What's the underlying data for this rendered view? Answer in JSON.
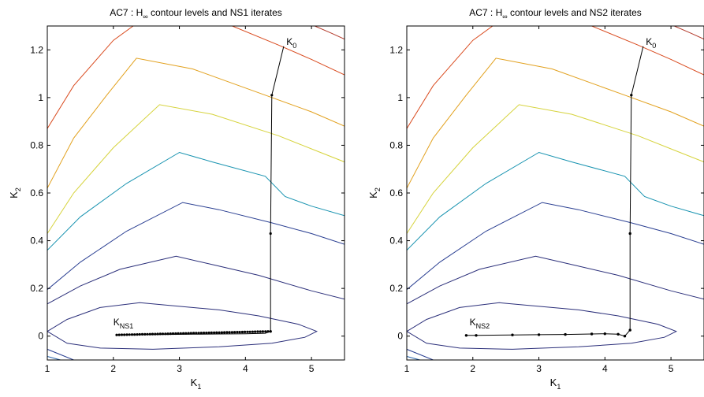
{
  "figure": {
    "colors": {
      "c1": "#2b2f7a",
      "c2": "#2a3f92",
      "c3": "#1f5da8",
      "c4": "#1893b0",
      "c5": "#39c7d6",
      "c6": "#d6d33c",
      "c7": "#e2a11e",
      "c8": "#d94a1e",
      "c9": "#b33a2b",
      "iterates": "#000000"
    }
  },
  "chart_data": [
    {
      "type": "line",
      "title_prefix": "AC7 : H",
      "title_sub": "∞",
      "title_suffix": " contour levels and NS1 iterates",
      "xlabel_main": "K",
      "xlabel_sub": "1",
      "ylabel_main": "K",
      "ylabel_sub": "2",
      "xlim": [
        1,
        5.5
      ],
      "ylim": [
        -0.1,
        1.3
      ],
      "xticks": [
        1,
        2,
        3,
        4,
        5
      ],
      "yticks": [
        0,
        0.2,
        0.4,
        0.6,
        0.8,
        1,
        1.2
      ],
      "yticklabels": [
        "0",
        "0.2",
        "0.4",
        "0.6",
        "0.8",
        "1",
        "1.2"
      ],
      "contours": [
        {
          "level": 1,
          "color": "c1",
          "closed": true,
          "points": [
            [
              1,
              0.02
            ],
            [
              1.3,
              0.07
            ],
            [
              1.8,
              0.12
            ],
            [
              2.4,
              0.14
            ],
            [
              3.0,
              0.125
            ],
            [
              3.6,
              0.11
            ],
            [
              4.2,
              0.085
            ],
            [
              4.8,
              0.05
            ],
            [
              5.08,
              0.02
            ],
            [
              4.9,
              -0.005
            ],
            [
              4.4,
              -0.03
            ],
            [
              3.6,
              -0.045
            ],
            [
              2.6,
              -0.055
            ],
            [
              1.8,
              -0.05
            ],
            [
              1.3,
              -0.03
            ],
            [
              1,
              0.02
            ]
          ]
        },
        {
          "level": 2,
          "color": "c1",
          "closed": false,
          "points": [
            [
              1,
              0.135
            ],
            [
              1.5,
              0.21
            ],
            [
              2.1,
              0.28
            ],
            [
              2.95,
              0.335
            ],
            [
              3.5,
              0.3
            ],
            [
              4.2,
              0.255
            ],
            [
              5.0,
              0.19
            ],
            [
              5.5,
              0.155
            ]
          ]
        },
        {
          "level": 3,
          "color": "c2",
          "closed": false,
          "points": [
            [
              1,
              0.195
            ],
            [
              1.5,
              0.31
            ],
            [
              2.2,
              0.44
            ],
            [
              3.05,
              0.56
            ],
            [
              3.6,
              0.53
            ],
            [
              4.4,
              0.475
            ],
            [
              5.0,
              0.43
            ],
            [
              5.5,
              0.385
            ]
          ]
        },
        {
          "level": 4,
          "color": "c4",
          "closed": false,
          "points": [
            [
              1,
              0.36
            ],
            [
              1.5,
              0.5
            ],
            [
              2.2,
              0.64
            ],
            [
              3.0,
              0.77
            ],
            [
              3.5,
              0.73
            ],
            [
              4.3,
              0.67
            ],
            [
              4.6,
              0.585
            ],
            [
              5.0,
              0.545
            ],
            [
              5.5,
              0.505
            ]
          ]
        },
        {
          "level": 5,
          "color": "c6",
          "closed": false,
          "points": [
            [
              1,
              0.43
            ],
            [
              1.4,
              0.6
            ],
            [
              2.0,
              0.79
            ],
            [
              2.7,
              0.97
            ],
            [
              3.5,
              0.93
            ],
            [
              4.5,
              0.84
            ],
            [
              5.0,
              0.785
            ],
            [
              5.5,
              0.73
            ]
          ]
        },
        {
          "level": 6,
          "color": "c7",
          "closed": false,
          "points": [
            [
              1,
              0.62
            ],
            [
              1.4,
              0.83
            ],
            [
              1.9,
              1.01
            ],
            [
              2.35,
              1.165
            ],
            [
              3.2,
              1.12
            ],
            [
              4.3,
              1.01
            ],
            [
              5.0,
              0.94
            ],
            [
              5.5,
              0.88
            ]
          ]
        },
        {
          "level": 7,
          "color": "c8",
          "closed": false,
          "points": [
            [
              1,
              0.87
            ],
            [
              1.4,
              1.05
            ],
            [
              2.0,
              1.24
            ],
            [
              2.3,
              1.3
            ]
          ]
        },
        {
          "level": 8,
          "color": "c8",
          "closed": false,
          "points": [
            [
              3.8,
              1.3
            ],
            [
              4.5,
              1.22
            ],
            [
              5.0,
              1.16
            ],
            [
              5.5,
              1.095
            ]
          ]
        },
        {
          "level": 9,
          "color": "c9",
          "closed": false,
          "points": [
            [
              5.05,
              1.3
            ],
            [
              5.3,
              1.27
            ],
            [
              5.5,
              1.245
            ]
          ]
        },
        {
          "level": 10,
          "color": "c3",
          "closed": false,
          "points": [
            [
              1,
              -0.085
            ],
            [
              1.2,
              -0.1
            ]
          ]
        },
        {
          "level": 11,
          "color": "c2",
          "closed": false,
          "points": [
            [
              1,
              -0.055
            ],
            [
              1.4,
              -0.1
            ]
          ]
        }
      ],
      "iterates": [
        [
          4.58,
          1.215
        ],
        [
          4.4,
          1.01
        ],
        [
          4.38,
          0.43
        ],
        [
          4.38,
          0.02
        ],
        [
          4.3,
          0.012
        ],
        [
          4.0,
          0.01
        ],
        [
          3.6,
          0.009
        ],
        [
          3.2,
          0.008
        ],
        [
          2.8,
          0.007
        ],
        [
          2.4,
          0.006
        ],
        [
          2.05,
          0.005
        ]
      ],
      "iterates_markers": "dense",
      "annotations": [
        {
          "main": "K",
          "sub": "0",
          "x": 4.62,
          "y": 1.22
        },
        {
          "main": "K",
          "sub": "NS1",
          "x": 2.0,
          "y": 0.045
        }
      ]
    },
    {
      "type": "line",
      "title_prefix": "AC7 : H",
      "title_sub": "∞",
      "title_suffix": " contour levels and NS2 iterates",
      "xlabel_main": "K",
      "xlabel_sub": "1",
      "ylabel_main": "K",
      "ylabel_sub": "2",
      "xlim": [
        1,
        5.5
      ],
      "ylim": [
        -0.1,
        1.3
      ],
      "xticks": [
        1,
        2,
        3,
        4,
        5
      ],
      "yticks": [
        0,
        0.2,
        0.4,
        0.6,
        0.8,
        1,
        1.2
      ],
      "yticklabels": [
        "0",
        "0.2",
        "0.4",
        "0.6",
        "0.8",
        "1",
        "1.2"
      ],
      "contours": [
        {
          "level": 1,
          "color": "c1",
          "closed": true,
          "points": [
            [
              1,
              0.02
            ],
            [
              1.3,
              0.07
            ],
            [
              1.8,
              0.12
            ],
            [
              2.4,
              0.14
            ],
            [
              3.0,
              0.125
            ],
            [
              3.6,
              0.11
            ],
            [
              4.2,
              0.085
            ],
            [
              4.8,
              0.05
            ],
            [
              5.08,
              0.02
            ],
            [
              4.9,
              -0.005
            ],
            [
              4.4,
              -0.03
            ],
            [
              3.6,
              -0.045
            ],
            [
              2.6,
              -0.055
            ],
            [
              1.8,
              -0.05
            ],
            [
              1.3,
              -0.03
            ],
            [
              1,
              0.02
            ]
          ]
        },
        {
          "level": 2,
          "color": "c1",
          "closed": false,
          "points": [
            [
              1,
              0.135
            ],
            [
              1.5,
              0.21
            ],
            [
              2.1,
              0.28
            ],
            [
              2.95,
              0.335
            ],
            [
              3.5,
              0.3
            ],
            [
              4.2,
              0.255
            ],
            [
              5.0,
              0.19
            ],
            [
              5.5,
              0.155
            ]
          ]
        },
        {
          "level": 3,
          "color": "c2",
          "closed": false,
          "points": [
            [
              1,
              0.195
            ],
            [
              1.5,
              0.31
            ],
            [
              2.2,
              0.44
            ],
            [
              3.05,
              0.56
            ],
            [
              3.6,
              0.53
            ],
            [
              4.4,
              0.475
            ],
            [
              5.0,
              0.43
            ],
            [
              5.5,
              0.385
            ]
          ]
        },
        {
          "level": 4,
          "color": "c4",
          "closed": false,
          "points": [
            [
              1,
              0.36
            ],
            [
              1.5,
              0.5
            ],
            [
              2.2,
              0.64
            ],
            [
              3.0,
              0.77
            ],
            [
              3.5,
              0.73
            ],
            [
              4.3,
              0.67
            ],
            [
              4.6,
              0.585
            ],
            [
              5.0,
              0.545
            ],
            [
              5.5,
              0.505
            ]
          ]
        },
        {
          "level": 5,
          "color": "c6",
          "closed": false,
          "points": [
            [
              1,
              0.43
            ],
            [
              1.4,
              0.6
            ],
            [
              2.0,
              0.79
            ],
            [
              2.7,
              0.97
            ],
            [
              3.5,
              0.93
            ],
            [
              4.5,
              0.84
            ],
            [
              5.0,
              0.785
            ],
            [
              5.5,
              0.73
            ]
          ]
        },
        {
          "level": 6,
          "color": "c7",
          "closed": false,
          "points": [
            [
              1,
              0.62
            ],
            [
              1.4,
              0.83
            ],
            [
              1.9,
              1.01
            ],
            [
              2.35,
              1.165
            ],
            [
              3.2,
              1.12
            ],
            [
              4.3,
              1.01
            ],
            [
              5.0,
              0.94
            ],
            [
              5.5,
              0.88
            ]
          ]
        },
        {
          "level": 7,
          "color": "c8",
          "closed": false,
          "points": [
            [
              1,
              0.87
            ],
            [
              1.4,
              1.05
            ],
            [
              2.0,
              1.24
            ],
            [
              2.3,
              1.3
            ]
          ]
        },
        {
          "level": 8,
          "color": "c8",
          "closed": false,
          "points": [
            [
              3.8,
              1.3
            ],
            [
              4.5,
              1.22
            ],
            [
              5.0,
              1.16
            ],
            [
              5.5,
              1.095
            ]
          ]
        },
        {
          "level": 9,
          "color": "c9",
          "closed": false,
          "points": [
            [
              5.05,
              1.3
            ],
            [
              5.3,
              1.27
            ],
            [
              5.5,
              1.245
            ]
          ]
        },
        {
          "level": 10,
          "color": "c3",
          "closed": false,
          "points": [
            [
              1,
              -0.085
            ],
            [
              1.2,
              -0.1
            ]
          ]
        },
        {
          "level": 11,
          "color": "c2",
          "closed": false,
          "points": [
            [
              1,
              -0.055
            ],
            [
              1.4,
              -0.1
            ]
          ]
        }
      ],
      "iterates": [
        [
          4.58,
          1.215
        ],
        [
          4.4,
          1.01
        ],
        [
          4.38,
          0.43
        ],
        [
          4.38,
          0.025
        ],
        [
          4.3,
          0.0
        ],
        [
          4.2,
          0.008
        ],
        [
          4.0,
          0.01
        ],
        [
          3.8,
          0.009
        ],
        [
          3.4,
          0.007
        ],
        [
          3.0,
          0.006
        ],
        [
          2.6,
          0.005
        ],
        [
          2.05,
          0.003
        ],
        [
          1.9,
          0.003
        ]
      ],
      "iterates_markers": "sparse",
      "annotations": [
        {
          "main": "K",
          "sub": "0",
          "x": 4.62,
          "y": 1.22
        },
        {
          "main": "K",
          "sub": "NS2",
          "x": 1.95,
          "y": 0.045
        }
      ]
    }
  ]
}
